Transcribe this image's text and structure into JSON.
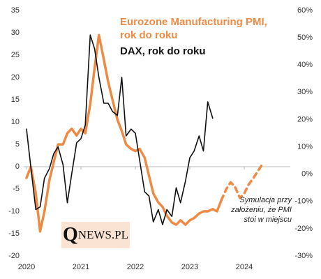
{
  "chart_data": {
    "type": "line",
    "x_axis_at_zero": true,
    "xlim": [
      2020,
      2024.8
    ],
    "xticks": [
      2020,
      2021,
      2022,
      2023,
      2024
    ],
    "ylim": [
      -20,
      35
    ],
    "yticks": [
      -20,
      -15,
      -10,
      -5,
      0,
      5,
      10,
      15,
      20,
      25,
      30,
      35
    ],
    "y2lim": [
      -30,
      60
    ],
    "y2ticks": [
      {
        "value": -30,
        "label": "-30%"
      },
      {
        "value": -20,
        "label": "-20%"
      },
      {
        "value": -10,
        "label": "-10%"
      },
      {
        "value": 0,
        "label": "0%"
      },
      {
        "value": 10,
        "label": "10%"
      },
      {
        "value": 20,
        "label": "20%"
      },
      {
        "value": 30,
        "label": "30%"
      },
      {
        "value": 40,
        "label": "40%"
      },
      {
        "value": 50,
        "label": "50%"
      },
      {
        "value": 60,
        "label": "60%"
      }
    ],
    "grid": false,
    "series": [
      {
        "name": "Eurozone Manufacturing PMI, rok do roku",
        "color": "#ee8a44",
        "axis": "y",
        "dashed": false,
        "x": [
          2020.0,
          2020.08,
          2020.17,
          2020.25,
          2020.33,
          2020.42,
          2020.5,
          2020.58,
          2020.67,
          2020.75,
          2020.83,
          2020.92,
          2021.0,
          2021.08,
          2021.17,
          2021.25,
          2021.33,
          2021.42,
          2021.5,
          2021.58,
          2021.67,
          2021.75,
          2021.83,
          2021.92,
          2022.0,
          2022.08,
          2022.17,
          2022.25,
          2022.33,
          2022.42,
          2022.5,
          2022.58,
          2022.67,
          2022.75,
          2022.83,
          2022.92,
          2023.0,
          2023.08,
          2023.17,
          2023.25,
          2023.33,
          2023.42,
          2023.5,
          2023.58
        ],
        "values": [
          -2.5,
          0,
          -6,
          -14.5,
          -10,
          -3,
          1,
          5,
          5,
          7.5,
          8.5,
          7,
          8.5,
          7.5,
          14,
          22,
          29.5,
          24,
          19,
          15,
          10.5,
          8,
          5,
          4,
          3.5,
          4,
          2,
          -2,
          -6,
          -8,
          -9,
          -11,
          -12.5,
          -13,
          -12,
          -13,
          -12,
          -11.5,
          -10.5,
          -10,
          -10,
          -9.5,
          -10,
          -7.5
        ]
      },
      {
        "name": "DAX, rok do roku",
        "color": "#111111",
        "axis": "y2",
        "dashed": false,
        "x": [
          2020.0,
          2020.08,
          2020.17,
          2020.25,
          2020.33,
          2020.42,
          2020.5,
          2020.58,
          2020.67,
          2020.75,
          2020.83,
          2020.92,
          2021.0,
          2021.08,
          2021.17,
          2021.25,
          2021.33,
          2021.42,
          2021.5,
          2021.58,
          2021.67,
          2021.75,
          2021.83,
          2021.92,
          2022.0,
          2022.08,
          2022.17,
          2022.25,
          2022.33,
          2022.42,
          2022.5,
          2022.58,
          2022.67,
          2022.75,
          2022.83,
          2022.92,
          2023.0,
          2023.08,
          2023.17,
          2023.25,
          2023.33,
          2023.42
        ],
        "values": [
          16.5,
          2.5,
          -13,
          -12,
          -1.5,
          2,
          7.5,
          10,
          3.5,
          -10.5,
          0,
          11.5,
          13,
          18,
          51,
          46,
          35.5,
          26,
          26,
          23,
          21.5,
          35.5,
          14,
          16.5,
          15,
          5,
          -6.5,
          -8,
          -17.5,
          -13,
          -18.5,
          -13,
          -15.5,
          -5,
          -10.5,
          -2.5,
          6,
          8.5,
          14,
          8.5,
          26.5,
          20.5
        ]
      },
      {
        "color": "#ee8a44",
        "axis": "y",
        "dashed": true,
        "x": [
          2023.58,
          2023.67,
          2023.75,
          2023.83,
          2023.92,
          2024.0,
          2024.08,
          2024.17,
          2024.25,
          2024.33
        ],
        "values": [
          -7.5,
          -5,
          -3.5,
          -4.5,
          -7,
          -6,
          -4,
          -2.5,
          -1,
          0.5
        ]
      }
    ],
    "annotation": "Symulacja przy założeniu, że PMI stoi w miejscu",
    "logo": {
      "initial": "Q",
      "rest": "NEWS.PL"
    }
  }
}
